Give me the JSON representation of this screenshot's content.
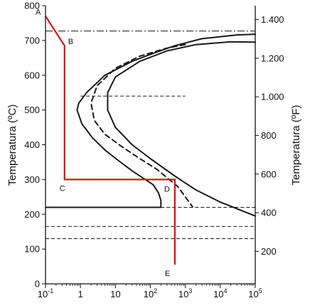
{
  "chart_data": {
    "type": "line",
    "subtype": "TTT / CCT diagram with cooling path",
    "xscale": "log",
    "xlim": [
      0.1,
      100000
    ],
    "x_ticks": [
      {
        "value": 0.1,
        "base": "10",
        "exp": "-1"
      },
      {
        "value": 1,
        "base": "1",
        "exp": ""
      },
      {
        "value": 10,
        "base": "10",
        "exp": ""
      },
      {
        "value": 100,
        "base": "10",
        "exp": "2"
      },
      {
        "value": 1000,
        "base": "10",
        "exp": "3"
      },
      {
        "value": 10000,
        "base": "10",
        "exp": "4"
      },
      {
        "value": 100000,
        "base": "10",
        "exp": "5"
      }
    ],
    "ylabel": "Temperatura (ºC)",
    "ylim": [
      0,
      800
    ],
    "y_ticks": [
      0,
      100,
      200,
      300,
      400,
      500,
      600,
      700,
      800
    ],
    "y2label": "Temperatura (ºF)",
    "y2_ticks": [
      {
        "value": 200,
        "label": "200"
      },
      {
        "value": 400,
        "label": "400"
      },
      {
        "value": 600,
        "label": "600"
      },
      {
        "value": 800,
        "label": "800"
      },
      {
        "value": 1000,
        "label": "1.000"
      },
      {
        "value": 1200,
        "label": "1.200"
      },
      {
        "value": 1400,
        "label": "1.400"
      }
    ],
    "colors": {
      "curves": "#1a1a1a",
      "path": "#dd1111",
      "axis": "#111111"
    },
    "reference_lines": [
      {
        "y": 727,
        "style": "dashdot"
      },
      {
        "y": 540,
        "x": [
          1,
          1000
        ],
        "style": "dashed"
      },
      {
        "y": 220,
        "x": [
          0.1,
          200
        ],
        "style": "solid"
      },
      {
        "y": 220,
        "x": [
          200,
          100000
        ],
        "style": "dashed"
      },
      {
        "y": 165,
        "x": [
          0.1,
          100000
        ],
        "style": "dashed"
      },
      {
        "y": 130,
        "x": [
          0.1,
          100000
        ],
        "style": "dashed"
      }
    ],
    "series": [
      {
        "style": "solid",
        "x": [
          100000,
          30000,
          3000,
          500,
          100,
          30,
          5,
          1.5,
          0.9,
          0.8,
          1.1,
          2.2,
          5,
          12,
          30,
          60,
          120,
          170,
          200,
          200
        ],
        "y": [
          718,
          716,
          705,
          685,
          660,
          640,
          600,
          550,
          520,
          500,
          460,
          420,
          385,
          355,
          325,
          305,
          285,
          262,
          240,
          220
        ]
      },
      {
        "style": "dashed",
        "x": [
          1000,
          300,
          50,
          10,
          3,
          2,
          2.5,
          5,
          15,
          50,
          150,
          300,
          600,
          1000,
          1600
        ],
        "y": [
          688,
          678,
          655,
          620,
          570,
          520,
          470,
          430,
          395,
          360,
          330,
          305,
          280,
          250,
          222
        ]
      },
      {
        "style": "solid",
        "x": [
          100000,
          20000,
          2000,
          300,
          50,
          10,
          6,
          6,
          10,
          30,
          100,
          500,
          2000,
          10000,
          100000
        ],
        "y": [
          695,
          696,
          688,
          670,
          640,
          595,
          550,
          500,
          450,
          400,
          360,
          310,
          270,
          235,
          195
        ]
      },
      {
        "style": "path",
        "x": [
          0.1,
          0.35,
          0.35,
          500,
          500
        ],
        "y": [
          770,
          685,
          300,
          300,
          55
        ]
      }
    ],
    "annotations": [
      {
        "label": "A",
        "x": 0.1,
        "y": 770
      },
      {
        "label": "B",
        "x": 0.35,
        "y": 685
      },
      {
        "label": "C",
        "x": 0.35,
        "y": 300
      },
      {
        "label": "D",
        "x": 500,
        "y": 300
      },
      {
        "label": "E",
        "x": 500,
        "y": 55
      }
    ]
  }
}
